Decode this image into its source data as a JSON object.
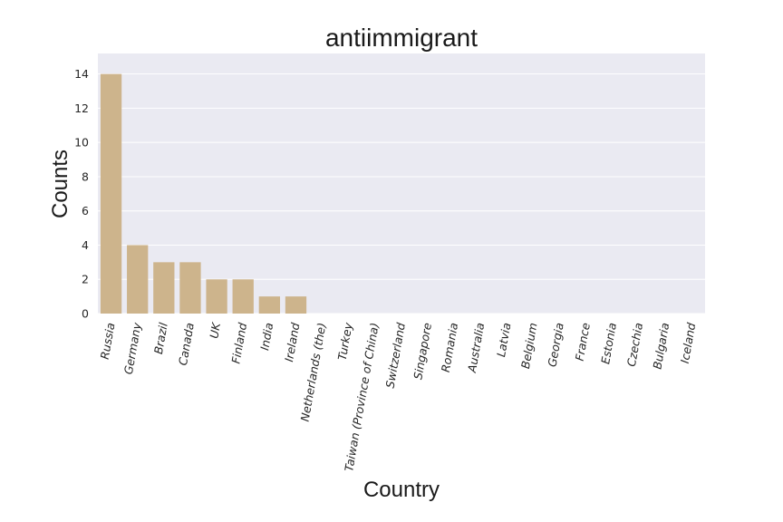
{
  "chart_data": {
    "type": "bar",
    "title": "antiimmigrant",
    "xlabel": "Country",
    "ylabel": "Counts",
    "categories": [
      "Russia",
      "Germany",
      "Brazil",
      "Canada",
      "UK",
      "Finland",
      "India",
      "Ireland",
      "Netherlands (the)",
      "Turkey",
      "Taiwan (Province of China)",
      "Switzerland",
      "Singapore",
      "Romania",
      "Australia",
      "Latvia",
      "Belgium",
      "Georgia",
      "France",
      "Estonia",
      "Czechia",
      "Bulgaria",
      "Iceland"
    ],
    "values": [
      14,
      4,
      3,
      3,
      2,
      2,
      1,
      1,
      0,
      0,
      0,
      0,
      0,
      0,
      0,
      0,
      0,
      0,
      0,
      0,
      0,
      0,
      0
    ],
    "ylim": [
      0,
      15.2
    ],
    "yticks": [
      "0",
      "2",
      "4",
      "6",
      "8",
      "10",
      "12",
      "14"
    ],
    "grid": true,
    "colors": {
      "bar": "#cdb48c",
      "plot_background": "#eaeaf2",
      "grid": "#ffffff"
    }
  }
}
